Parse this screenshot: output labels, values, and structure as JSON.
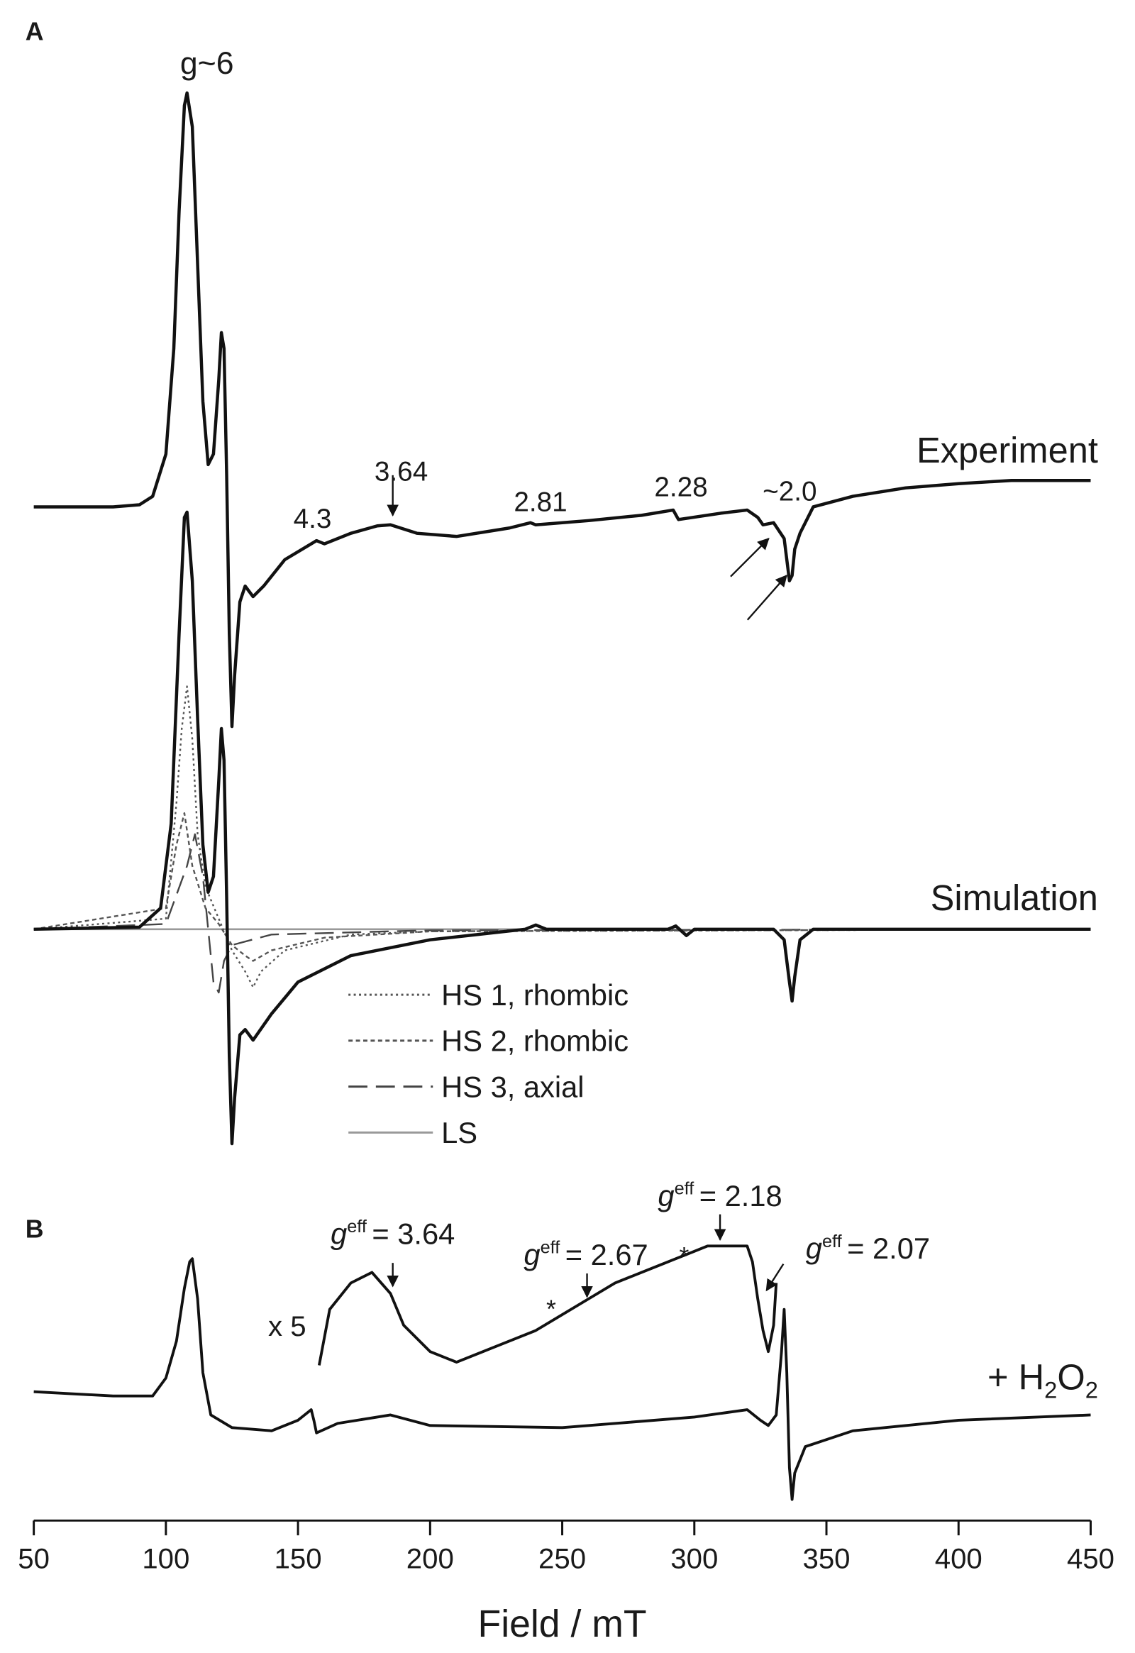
{
  "chart_data": {
    "type": "line",
    "x_label": "Field / mT",
    "xlim": [
      50,
      450
    ],
    "xticks": [
      50,
      100,
      150,
      200,
      250,
      300,
      350,
      400,
      450
    ],
    "panels": [
      "A",
      "B"
    ],
    "series": [
      {
        "name": "Experiment",
        "color": "#111111",
        "dash": "none",
        "x": [
          50,
          80,
          90,
          95,
          100,
          103,
          105,
          107,
          108,
          110,
          112,
          114,
          116,
          118,
          120,
          121,
          122,
          123,
          124,
          125,
          126,
          128,
          130,
          133,
          137,
          145,
          155,
          157,
          160,
          170,
          180,
          185,
          195,
          210,
          230,
          238,
          240,
          260,
          280,
          292,
          294,
          310,
          320,
          324,
          326,
          330,
          334,
          336,
          337,
          338,
          340,
          345,
          360,
          380,
          400,
          420,
          450
        ],
        "values": [
          0,
          0,
          2,
          10,
          50,
          150,
          280,
          380,
          392,
          360,
          230,
          100,
          40,
          50,
          120,
          165,
          150,
          30,
          -120,
          -208,
          -160,
          -90,
          -75,
          -85,
          -75,
          -50,
          -35,
          -32,
          -35,
          -25,
          -18,
          -17,
          -25,
          -28,
          -20,
          -15,
          -17,
          -13,
          -8,
          -3,
          -12,
          -6,
          -3,
          -10,
          -17,
          -15,
          -30,
          -70,
          -65,
          -40,
          -25,
          0,
          10,
          18,
          22,
          25,
          25
        ]
      },
      {
        "name": "Simulation",
        "color": "#111111",
        "dash": "none",
        "x": [
          50,
          90,
          98,
          102,
          105,
          107,
          108,
          110,
          112,
          114,
          116,
          118,
          120,
          121,
          122,
          123,
          124,
          125,
          126,
          128,
          130,
          133,
          140,
          150,
          170,
          200,
          236,
          240,
          244,
          290,
          293,
          297,
          300,
          330,
          334,
          336,
          337,
          338,
          340,
          345,
          450
        ],
        "values": [
          0,
          2,
          20,
          100,
          280,
          390,
          395,
          330,
          200,
          80,
          35,
          50,
          140,
          190,
          160,
          30,
          -120,
          -203,
          -160,
          -100,
          -95,
          -105,
          -80,
          -50,
          -25,
          -10,
          0,
          4,
          0,
          0,
          3,
          -6,
          0,
          0,
          -10,
          -50,
          -68,
          -45,
          -10,
          0,
          0
        ]
      },
      {
        "name": "HS 1, rhombic",
        "color": "#555555",
        "dash": "2,3",
        "x": [
          50,
          100,
          104,
          106,
          108,
          110,
          112,
          115,
          120,
          125,
          130,
          133,
          136,
          145,
          170,
          200,
          450
        ],
        "values": [
          0,
          10,
          120,
          190,
          230,
          180,
          90,
          40,
          10,
          -20,
          -40,
          -55,
          -40,
          -20,
          -5,
          -2,
          0
        ]
      },
      {
        "name": "HS 2, rhombic",
        "color": "#555555",
        "dash": "4,3",
        "x": [
          50,
          100,
          104,
          107,
          110,
          115,
          120,
          125,
          130,
          133,
          140,
          160,
          200,
          450
        ],
        "values": [
          0,
          20,
          80,
          110,
          60,
          20,
          5,
          -15,
          -25,
          -30,
          -20,
          -8,
          -2,
          0
        ]
      },
      {
        "name": "HS 3, axial",
        "color": "#444444",
        "dash": "18,8",
        "x": [
          50,
          100,
          108,
          111,
          114,
          116,
          118,
          120,
          122,
          125,
          140,
          200,
          450
        ],
        "values": [
          0,
          5,
          60,
          90,
          50,
          0,
          -50,
          -60,
          -30,
          -15,
          -5,
          -1,
          0
        ]
      },
      {
        "name": "LS",
        "color": "#999999",
        "dash": "none",
        "x": [
          50,
          236,
          240,
          244,
          290,
          293,
          297,
          300,
          330,
          334,
          336,
          337,
          338,
          340,
          345,
          450
        ],
        "values": [
          0,
          0,
          4,
          0,
          0,
          4,
          -5,
          0,
          0,
          -10,
          -45,
          -65,
          -45,
          -10,
          0,
          0
        ]
      },
      {
        "label_parts": [
          "+ H",
          "2",
          "O",
          "2"
        ],
        "color": "#111111",
        "dash": "none",
        "x": [
          50,
          80,
          95,
          100,
          104,
          107,
          109,
          110,
          112,
          114,
          117,
          125,
          140,
          150,
          155,
          156,
          157,
          165,
          185,
          200,
          250,
          300,
          320,
          325,
          328,
          331,
          333,
          334,
          335,
          336,
          337,
          338,
          342,
          360,
          400,
          450
        ],
        "values": [
          0,
          -4,
          -4,
          13,
          48,
          98,
          123,
          126,
          88,
          18,
          -22,
          -34,
          -37,
          -27,
          -17,
          -27,
          -39,
          -30,
          -22,
          -32,
          -34,
          -24,
          -17,
          -27,
          -32,
          -22,
          38,
          78,
          18,
          -72,
          -102,
          -77,
          -52,
          -37,
          -27,
          -22
        ]
      },
      {
        "name": "x 5",
        "color": "#111111",
        "dash": "none",
        "x": [
          158,
          162,
          170,
          178,
          185,
          190,
          200,
          210,
          220,
          240,
          250,
          260,
          270,
          280,
          290,
          300,
          305,
          310,
          320,
          322,
          324,
          326,
          328,
          330,
          331
        ],
        "values": [
          25,
          78,
          103,
          113,
          93,
          63,
          38,
          28,
          38,
          58,
          73,
          88,
          103,
          113,
          123,
          133,
          138,
          138,
          138,
          123,
          88,
          58,
          38,
          63,
          103
        ]
      }
    ],
    "annotations": [
      "g~6",
      "4.3",
      "3.64",
      "2.81",
      "2.28",
      "~2.0",
      "*",
      "*"
    ],
    "g_labels": [
      {
        "symbol": "g",
        "sup": "eff",
        "text": "= 3.64"
      },
      {
        "symbol": "g",
        "sup": "eff",
        "text": "= 2.67"
      },
      {
        "symbol": "g",
        "sup": "eff",
        "text": "= 2.18"
      },
      {
        "symbol": "g",
        "sup": "eff",
        "text": "= 2.07"
      }
    ]
  }
}
